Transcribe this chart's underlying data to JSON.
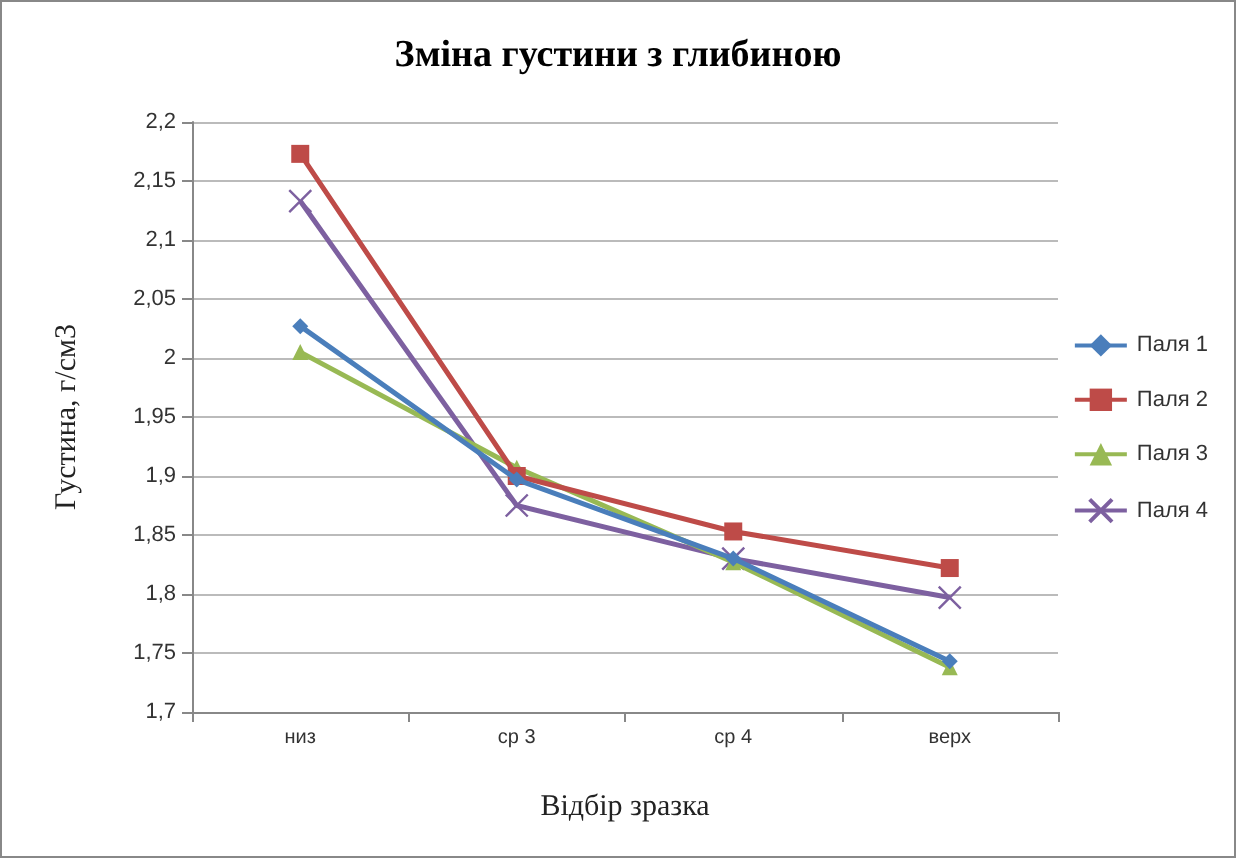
{
  "chart_data": {
    "type": "line",
    "title": "Зміна густини з глибиною",
    "xlabel": "Відбір зразка",
    "ylabel": "Густина, г/см3",
    "categories": [
      "низ",
      "ср 3",
      "ср 4",
      "верх"
    ],
    "series": [
      {
        "name": "Паля 1",
        "color": "#4a7ebb",
        "marker": "diamond",
        "values": [
          2.027,
          1.897,
          1.83,
          1.743
        ]
      },
      {
        "name": "Паля 2",
        "color": "#be4b48",
        "marker": "square",
        "values": [
          2.173,
          1.9,
          1.853,
          1.822
        ]
      },
      {
        "name": "Паля 3",
        "color": "#98b954",
        "marker": "triangle",
        "values": [
          2.005,
          1.907,
          1.827,
          1.738
        ]
      },
      {
        "name": "Паля 4",
        "color": "#7d60a0",
        "marker": "cross",
        "values": [
          2.133,
          1.875,
          1.83,
          1.797
        ]
      }
    ],
    "ylim": [
      1.7,
      2.2
    ],
    "yticks": [
      {
        "value": 1.7,
        "label": "1,7"
      },
      {
        "value": 1.75,
        "label": "1,75"
      },
      {
        "value": 1.8,
        "label": "1,8"
      },
      {
        "value": 1.85,
        "label": "1,85"
      },
      {
        "value": 1.9,
        "label": "1,9"
      },
      {
        "value": 1.95,
        "label": "1,95"
      },
      2,
      {
        "value": 2.05,
        "label": "2,05"
      },
      {
        "value": 2.1,
        "label": "2,1"
      },
      {
        "value": 2.15,
        "label": "2,15"
      },
      {
        "value": 2.2,
        "label": "2,2"
      }
    ],
    "grid": "y",
    "legend": "right",
    "line_style": "solid"
  }
}
